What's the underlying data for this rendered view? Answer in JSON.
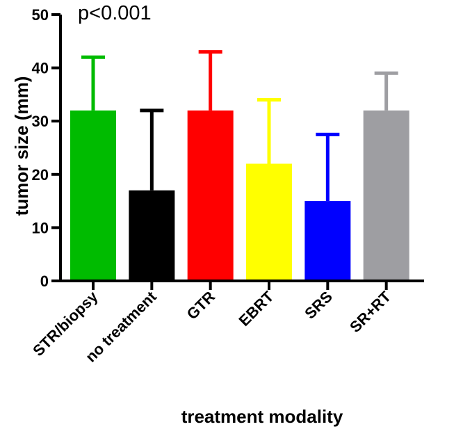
{
  "chart_data": {
    "type": "bar",
    "title": "",
    "annotation": "p<0.001",
    "xlabel": "treatment modality",
    "ylabel": "tumor size (mm)",
    "ylim": [
      0,
      50
    ],
    "yticks": [
      0,
      10,
      20,
      30,
      40,
      50
    ],
    "categories": [
      "STR/biopsy",
      "no treatment",
      "GTR",
      "EBRT",
      "SRS",
      "SR+RT"
    ],
    "values": [
      32,
      17,
      32,
      22,
      15,
      32
    ],
    "error_upper": [
      42,
      32,
      43,
      34,
      27.5,
      39
    ],
    "colors": [
      "#00bb00",
      "#000000",
      "#ff0000",
      "#ffff00",
      "#0000ff",
      "#9e9ea2"
    ],
    "grid": false,
    "legend": "none"
  }
}
